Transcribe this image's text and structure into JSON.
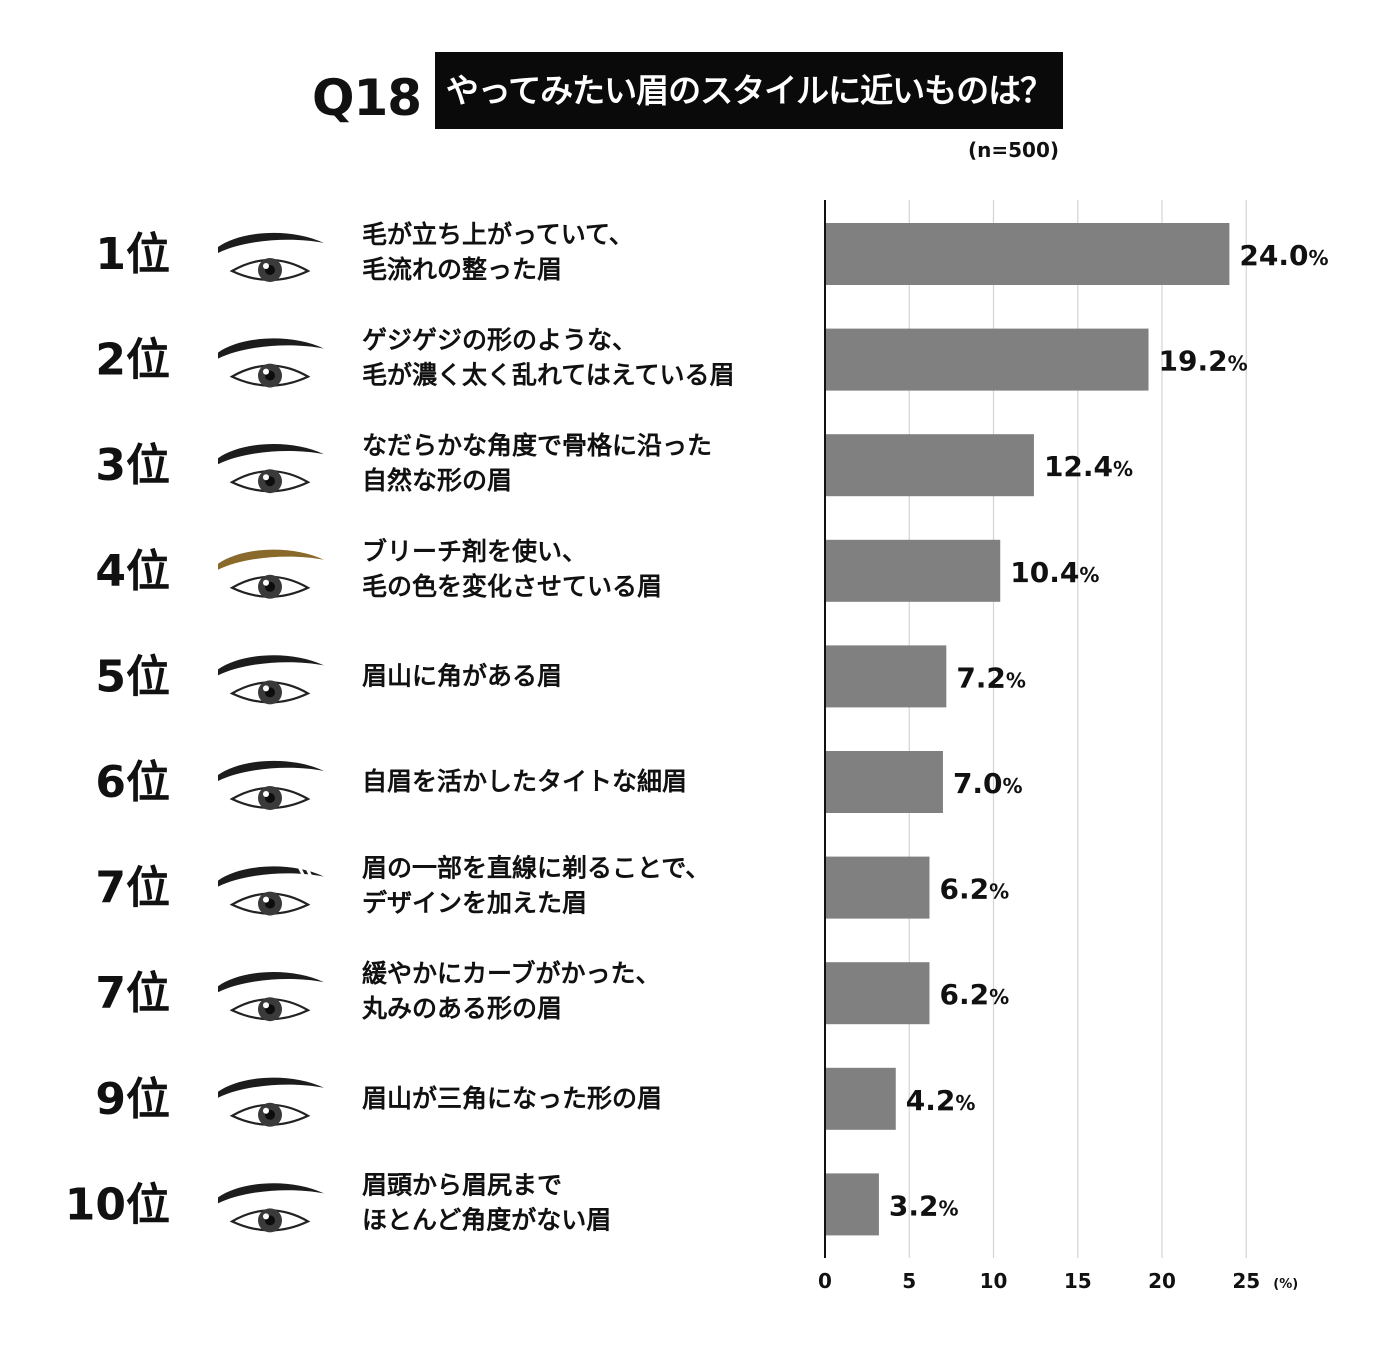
{
  "header": {
    "question_no": "Q18",
    "question": "やってみたい眉のスタイルに近いものは？",
    "sample_size": "(n=500)"
  },
  "colors": {
    "bar": "#808080",
    "axis": "#111111",
    "grid": "#d4d4d4",
    "brow_default": "#1c1c1c",
    "brow_bleached": "#8a6a2a"
  },
  "chart_data": {
    "type": "bar",
    "orientation": "horizontal",
    "x_unit": "(%)",
    "xlim": [
      0,
      25
    ],
    "xticks": [
      0,
      5,
      10,
      15,
      20,
      25
    ],
    "grid": true,
    "items": [
      {
        "rank": "1位",
        "label": [
          "毛が立ち上がっていて、",
          "毛流れの整った眉"
        ],
        "value": 24.0,
        "value_label": "24.0",
        "brow": "brush-up-brow-icon"
      },
      {
        "rank": "2位",
        "label": [
          "ゲジゲジの形のような、",
          "毛が濃く太く乱れてはえている眉"
        ],
        "value": 19.2,
        "value_label": "19.2",
        "brow": "bushy-brow-icon"
      },
      {
        "rank": "3位",
        "label": [
          "なだらかな角度で骨格に沿った",
          "自然な形の眉"
        ],
        "value": 12.4,
        "value_label": "12.4",
        "brow": "natural-brow-icon"
      },
      {
        "rank": "4位",
        "label": [
          "ブリーチ剤を使い、",
          "毛の色を変化させている眉"
        ],
        "value": 10.4,
        "value_label": "10.4",
        "brow": "bleached-brow-icon",
        "bleached": true
      },
      {
        "rank": "5位",
        "label": [
          "眉山に角がある眉"
        ],
        "value": 7.2,
        "value_label": "7.2",
        "brow": "angled-brow-icon"
      },
      {
        "rank": "6位",
        "label": [
          "自眉を活かしたタイトな細眉"
        ],
        "value": 7.0,
        "value_label": "7.0",
        "brow": "thin-brow-icon"
      },
      {
        "rank": "7位",
        "label": [
          "眉の一部を直線に剃ることで、",
          "デザインを加えた眉"
        ],
        "value": 6.2,
        "value_label": "6.2",
        "brow": "slit-brow-icon",
        "slit": true
      },
      {
        "rank": "7位",
        "label": [
          "緩やかにカーブがかった、",
          "丸みのある形の眉"
        ],
        "value": 6.2,
        "value_label": "6.2",
        "brow": "curved-brow-icon"
      },
      {
        "rank": "9位",
        "label": [
          "眉山が三角になった形の眉"
        ],
        "value": 4.2,
        "value_label": "4.2",
        "brow": "peaked-brow-icon"
      },
      {
        "rank": "10位",
        "label": [
          "眉頭から眉尻まで",
          "ほとんど角度がない眉"
        ],
        "value": 3.2,
        "value_label": "3.2",
        "brow": "straight-brow-icon"
      }
    ]
  }
}
